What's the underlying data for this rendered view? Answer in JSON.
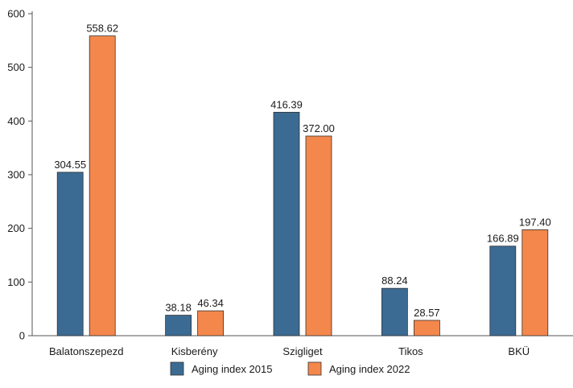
{
  "chart_data": {
    "type": "bar",
    "categories": [
      "Balatonszepezd",
      "Kisberény",
      "Szigliget",
      "Tikos",
      "BKÜ"
    ],
    "series": [
      {
        "name": "Aging index 2015",
        "color": "#3b6b93",
        "values": [
          304.55,
          38.18,
          416.39,
          88.24,
          166.89
        ],
        "labels": [
          "304.55",
          "38.18",
          "416.39",
          "88.24",
          "166.89"
        ]
      },
      {
        "name": "Aging index 2022",
        "color": "#f4874b",
        "values": [
          558.62,
          46.34,
          372.0,
          28.57,
          197.4
        ],
        "labels": [
          "558.62",
          "46.34",
          "372.00",
          "28.57",
          "197.40"
        ]
      }
    ],
    "ylim": [
      0,
      600
    ],
    "yticks": [
      0,
      100,
      200,
      300,
      400,
      500,
      600
    ],
    "grid": false,
    "legend_position": "bottom",
    "title": "",
    "xlabel": "",
    "ylabel": ""
  }
}
